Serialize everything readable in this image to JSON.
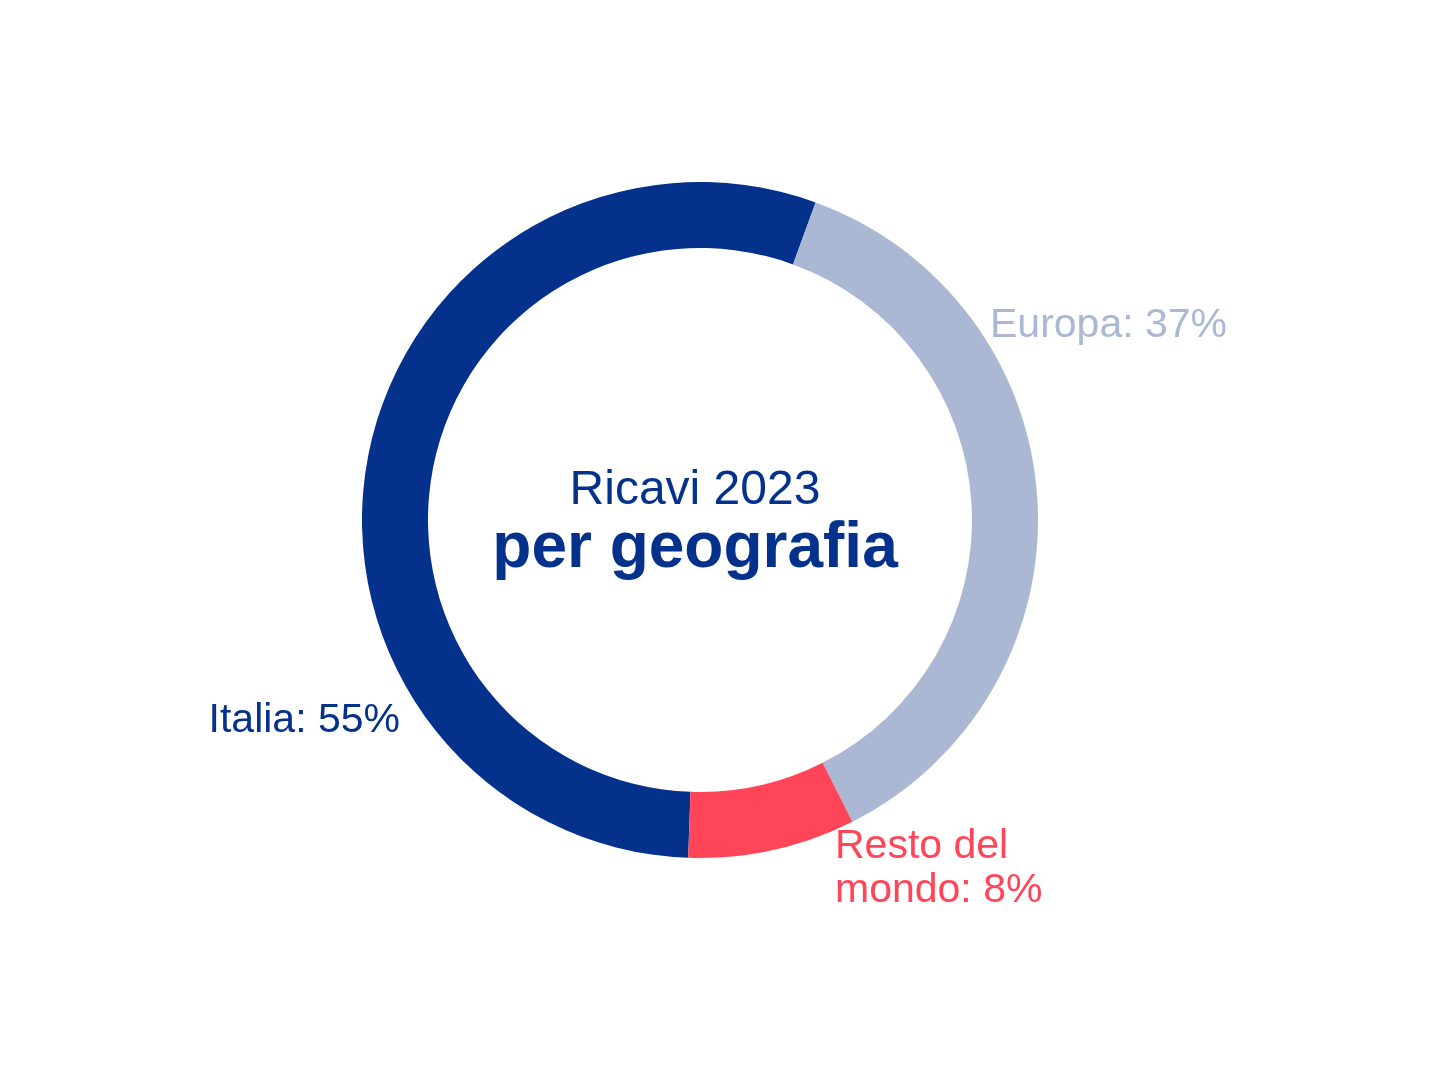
{
  "chart_data": {
    "type": "donut",
    "title": "Ricavi 2023",
    "subtitle": "per geografia",
    "categories": [
      "Italia",
      "Europa",
      "Resto del mondo"
    ],
    "values": [
      55,
      37,
      8
    ],
    "colors": [
      "#03318b",
      "#aab8d3",
      "#ff4557"
    ],
    "value_labels": [
      ": 55%",
      ": 37%",
      ": 8%"
    ],
    "legend": false
  }
}
